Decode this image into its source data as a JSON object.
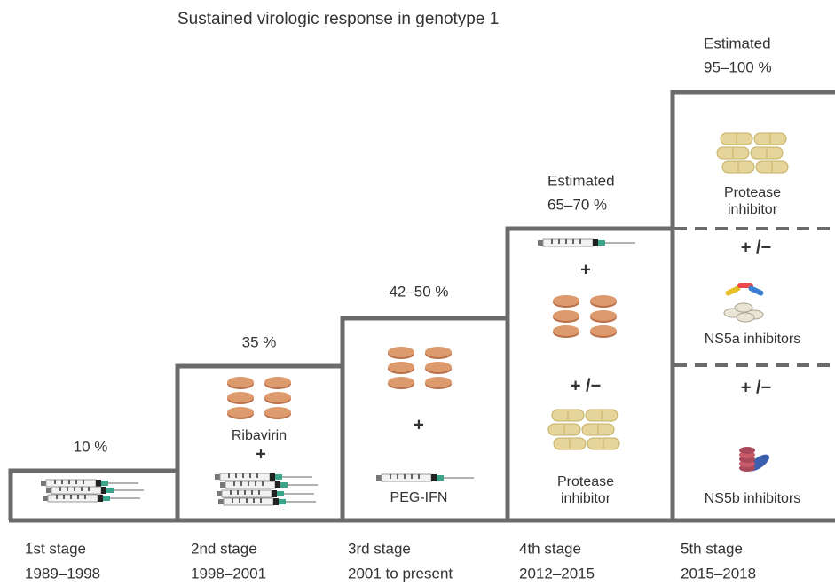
{
  "title": "Sustained virologic response in genotype 1",
  "stages": [
    {
      "name": "1st stage",
      "period": "1989–1998",
      "response": [
        "10 %"
      ],
      "labels": []
    },
    {
      "name": "2nd stage",
      "period": "1998–2001",
      "response": [
        "35 %"
      ],
      "labels": [
        "Ribavirin",
        "+"
      ]
    },
    {
      "name": "3rd stage",
      "period": "2001 to present",
      "response": [
        "42–50 %"
      ],
      "labels": [
        "+",
        "PEG-IFN"
      ]
    },
    {
      "name": "4th stage",
      "period": "2012–2015",
      "response": [
        "Estimated",
        "65–70 %"
      ],
      "labels": [
        "+",
        "+ /−",
        "Protease",
        "inhibitor"
      ]
    },
    {
      "name": "5th stage",
      "period": "2015–2018",
      "response": [
        "Estimated",
        "95–100 %"
      ],
      "labels": [
        "Protease",
        "inhibitor",
        "+ /−",
        "NS5a inhibitors",
        "+ /−",
        "NS5b inhibitors"
      ]
    }
  ]
}
